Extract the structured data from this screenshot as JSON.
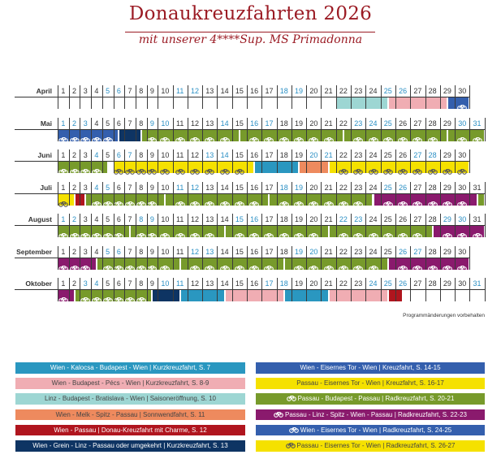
{
  "header": {
    "title": "Donaukreuzfahrten 2026",
    "subtitle": "mit unserer 4****Sup. MS Primadonna"
  },
  "note": "Programmänderungen vorbehalten",
  "trips": {
    "A": {
      "label": "Wien - Kalocsa - Budapest - Wien | Kurzkreuzfahrt, S. 7",
      "color": "#2a97c0",
      "text": "#ffffff",
      "bike": false
    },
    "B": {
      "label": "Wien - Budapest - Pécs - Wien | Kurzkreuzfahrt, S. 8-9",
      "color": "#f0adb3",
      "text": "#444444",
      "bike": false
    },
    "C": {
      "label": "Linz - Budapest - Bratislava - Wien | Saisoneröffnung, S. 10",
      "color": "#9dd6d3",
      "text": "#444444",
      "bike": false
    },
    "D": {
      "label": "Wien - Melk - Spitz - Passau | Sonnwendfahrt, S. 11",
      "color": "#ee8a5e",
      "text": "#444444",
      "bike": false
    },
    "E": {
      "label": "Wien - Passau | Donau-Kreuzfahrt mit Charme, S. 12",
      "color": "#b0151e",
      "text": "#ffffff",
      "bike": false
    },
    "F": {
      "label": "Wien - Grein - Linz - Passau oder umgekehrt | Kurzkreuzfahrt, S. 13",
      "color": "#0e3463",
      "text": "#ffffff",
      "bike": false
    },
    "G": {
      "label": "Wien - Eisernes Tor - Wien | Kreuzfahrt, S. 14-15",
      "color": "#345fad",
      "text": "#ffffff",
      "bike": false
    },
    "H": {
      "label": "Passau - Eisernes Tor - Wien | Kreuzfahrt, S. 16-17",
      "color": "#f5e100",
      "text": "#444444",
      "bike": false
    },
    "I": {
      "label": "Passau - Budapest - Passau | Radkreuzfahrt, S. 20-21",
      "color": "#779a2b",
      "text": "#ffffff",
      "bike": true
    },
    "J": {
      "label": "Passau - Linz - Spitz - Wien - Passau | Radkreuzfahrt, S. 22-23",
      "color": "#8a1a6d",
      "text": "#ffffff",
      "bike": true
    },
    "K": {
      "label": "Wien - Eisernes Tor - Wien | Radkreuzfahrt, S. 24-25",
      "color": "#345fad",
      "text": "#ffffff",
      "bike": true
    },
    "L": {
      "label": "Passau - Eisernes Tor - Wien | Radkreuzfahrt, S. 26-27",
      "color": "#f5e100",
      "text": "#444444",
      "bike": true
    }
  },
  "legend_left": [
    "A",
    "B",
    "C",
    "D",
    "E",
    "F"
  ],
  "legend_right": [
    "G",
    "H",
    "I",
    "J",
    "K",
    "L"
  ],
  "months": [
    {
      "name": "April",
      "days": 30,
      "weekend": [
        5,
        6,
        11,
        12,
        18,
        19,
        25,
        26
      ],
      "segments": [
        {
          "trip": "C",
          "from": 22,
          "to": 25.5,
          "bikes": []
        },
        {
          "trip": "B",
          "from": 25.5,
          "to": 29.5,
          "bikes": []
        },
        {
          "trip": "K",
          "from": 29.5,
          "to": 31,
          "bikes": [
            30
          ]
        }
      ]
    },
    {
      "name": "Mai",
      "days": 31,
      "weekend": [
        1,
        2,
        3,
        9,
        10,
        14,
        16,
        17,
        23,
        24,
        25,
        30,
        31
      ],
      "segments": [
        {
          "trip": "K",
          "from": 1,
          "to": 6.5,
          "bikes": [
            1,
            2,
            3,
            4,
            5
          ]
        },
        {
          "trip": "F",
          "from": 6.5,
          "to": 8.5,
          "bikes": []
        },
        {
          "trip": "I",
          "from": 8.5,
          "to": 15.5,
          "bikes": [
            9,
            10,
            11,
            12,
            13,
            14
          ]
        },
        {
          "trip": "I",
          "from": 15.5,
          "to": 22.5,
          "bikes": [
            16,
            17,
            18,
            19,
            20,
            21
          ]
        },
        {
          "trip": "I",
          "from": 22.5,
          "to": 29.5,
          "bikes": [
            23,
            24,
            25,
            26,
            27,
            28
          ]
        },
        {
          "trip": "I",
          "from": 29.5,
          "to": 32,
          "bikes": [
            30,
            31
          ]
        }
      ]
    },
    {
      "name": "Juni",
      "days": 30,
      "weekend": [
        4,
        6,
        7,
        13,
        14,
        20,
        21,
        27,
        28
      ],
      "segments": [
        {
          "trip": "I",
          "from": 1,
          "to": 5.5,
          "bikes": [
            1,
            2,
            3,
            4
          ]
        },
        {
          "trip": "L",
          "from": 6,
          "to": 16.5,
          "bikes": [
            6,
            7,
            8,
            9,
            10,
            11,
            12,
            13,
            14,
            15
          ]
        },
        {
          "trip": "A",
          "from": 16.5,
          "to": 19.5,
          "bikes": []
        },
        {
          "trip": "D",
          "from": 19.5,
          "to": 21.5,
          "bikes": []
        },
        {
          "trip": "L",
          "from": 21.5,
          "to": 31,
          "bikes": [
            22,
            23,
            24,
            25,
            26,
            27,
            28,
            29,
            30
          ]
        }
      ]
    },
    {
      "name": "Juli",
      "days": 31,
      "weekend": [
        4,
        5,
        11,
        12,
        18,
        19,
        25,
        26
      ],
      "segments": [
        {
          "trip": "L",
          "from": 1,
          "to": 2.5,
          "bikes": [
            1
          ]
        },
        {
          "trip": "E",
          "from": 2.5,
          "to": 3.5,
          "bikes": []
        },
        {
          "trip": "I",
          "from": 3.5,
          "to": 10.5,
          "bikes": [
            4,
            5,
            6,
            7,
            8,
            9
          ]
        },
        {
          "trip": "I",
          "from": 10.5,
          "to": 17.5,
          "bikes": [
            11,
            12,
            13,
            14,
            15,
            16
          ]
        },
        {
          "trip": "I",
          "from": 17.5,
          "to": 24.5,
          "bikes": [
            18,
            19,
            20,
            21,
            22,
            23
          ]
        },
        {
          "trip": "J",
          "from": 24.5,
          "to": 31.5,
          "bikes": [
            25,
            26,
            27,
            28,
            29,
            30
          ]
        },
        {
          "trip": "I",
          "from": 31.5,
          "to": 32,
          "bikes": []
        }
      ]
    },
    {
      "name": "August",
      "days": 31,
      "weekend": [
        1,
        2,
        8,
        9,
        15,
        16,
        22,
        23,
        29,
        30
      ],
      "segments": [
        {
          "trip": "I",
          "from": 1,
          "to": 7.5,
          "bikes": [
            1,
            2,
            3,
            4,
            5,
            6
          ]
        },
        {
          "trip": "I",
          "from": 7.5,
          "to": 14.5,
          "bikes": [
            8,
            9,
            10,
            11,
            12,
            13
          ]
        },
        {
          "trip": "I",
          "from": 14.5,
          "to": 21.5,
          "bikes": [
            15,
            16,
            17,
            18,
            19,
            20
          ]
        },
        {
          "trip": "I",
          "from": 21.5,
          "to": 28.5,
          "bikes": [
            22,
            23,
            24,
            25,
            26,
            27
          ]
        },
        {
          "trip": "J",
          "from": 28.5,
          "to": 32,
          "bikes": [
            29,
            30,
            31
          ]
        }
      ]
    },
    {
      "name": "September",
      "days": 30,
      "weekend": [
        5,
        6,
        12,
        13,
        19,
        20,
        26,
        27
      ],
      "segments": [
        {
          "trip": "J",
          "from": 1,
          "to": 4.5,
          "bikes": [
            1,
            2,
            3
          ]
        },
        {
          "trip": "I",
          "from": 4.5,
          "to": 11.5,
          "bikes": [
            5,
            6,
            7,
            8,
            9,
            10
          ]
        },
        {
          "trip": "I",
          "from": 11.5,
          "to": 18.5,
          "bikes": [
            12,
            13,
            14,
            15,
            16,
            17
          ]
        },
        {
          "trip": "I",
          "from": 18.5,
          "to": 25.5,
          "bikes": [
            19,
            20,
            21,
            22,
            23,
            24
          ]
        },
        {
          "trip": "J",
          "from": 25.5,
          "to": 31,
          "bikes": [
            26,
            27,
            28,
            29,
            30
          ]
        }
      ]
    },
    {
      "name": "Oktober",
      "days": 31,
      "weekend": [
        3,
        4,
        10,
        11,
        17,
        18,
        24,
        25,
        26,
        31
      ],
      "segments": [
        {
          "trip": "J",
          "from": 1,
          "to": 2.5,
          "bikes": [
            1
          ]
        },
        {
          "trip": "I",
          "from": 2.5,
          "to": 9.5,
          "bikes": [
            3,
            4,
            5,
            6,
            7,
            8
          ]
        },
        {
          "trip": "F",
          "from": 9.5,
          "to": 11.5,
          "bikes": []
        },
        {
          "trip": "A",
          "from": 11.5,
          "to": 14.5,
          "bikes": []
        },
        {
          "trip": "B",
          "from": 14.5,
          "to": 18.5,
          "bikes": []
        },
        {
          "trip": "A",
          "from": 18.5,
          "to": 21.5,
          "bikes": []
        },
        {
          "trip": "B",
          "from": 21.5,
          "to": 25.5,
          "bikes": []
        },
        {
          "trip": "E",
          "from": 25.5,
          "to": 26.5,
          "bikes": []
        }
      ]
    }
  ]
}
